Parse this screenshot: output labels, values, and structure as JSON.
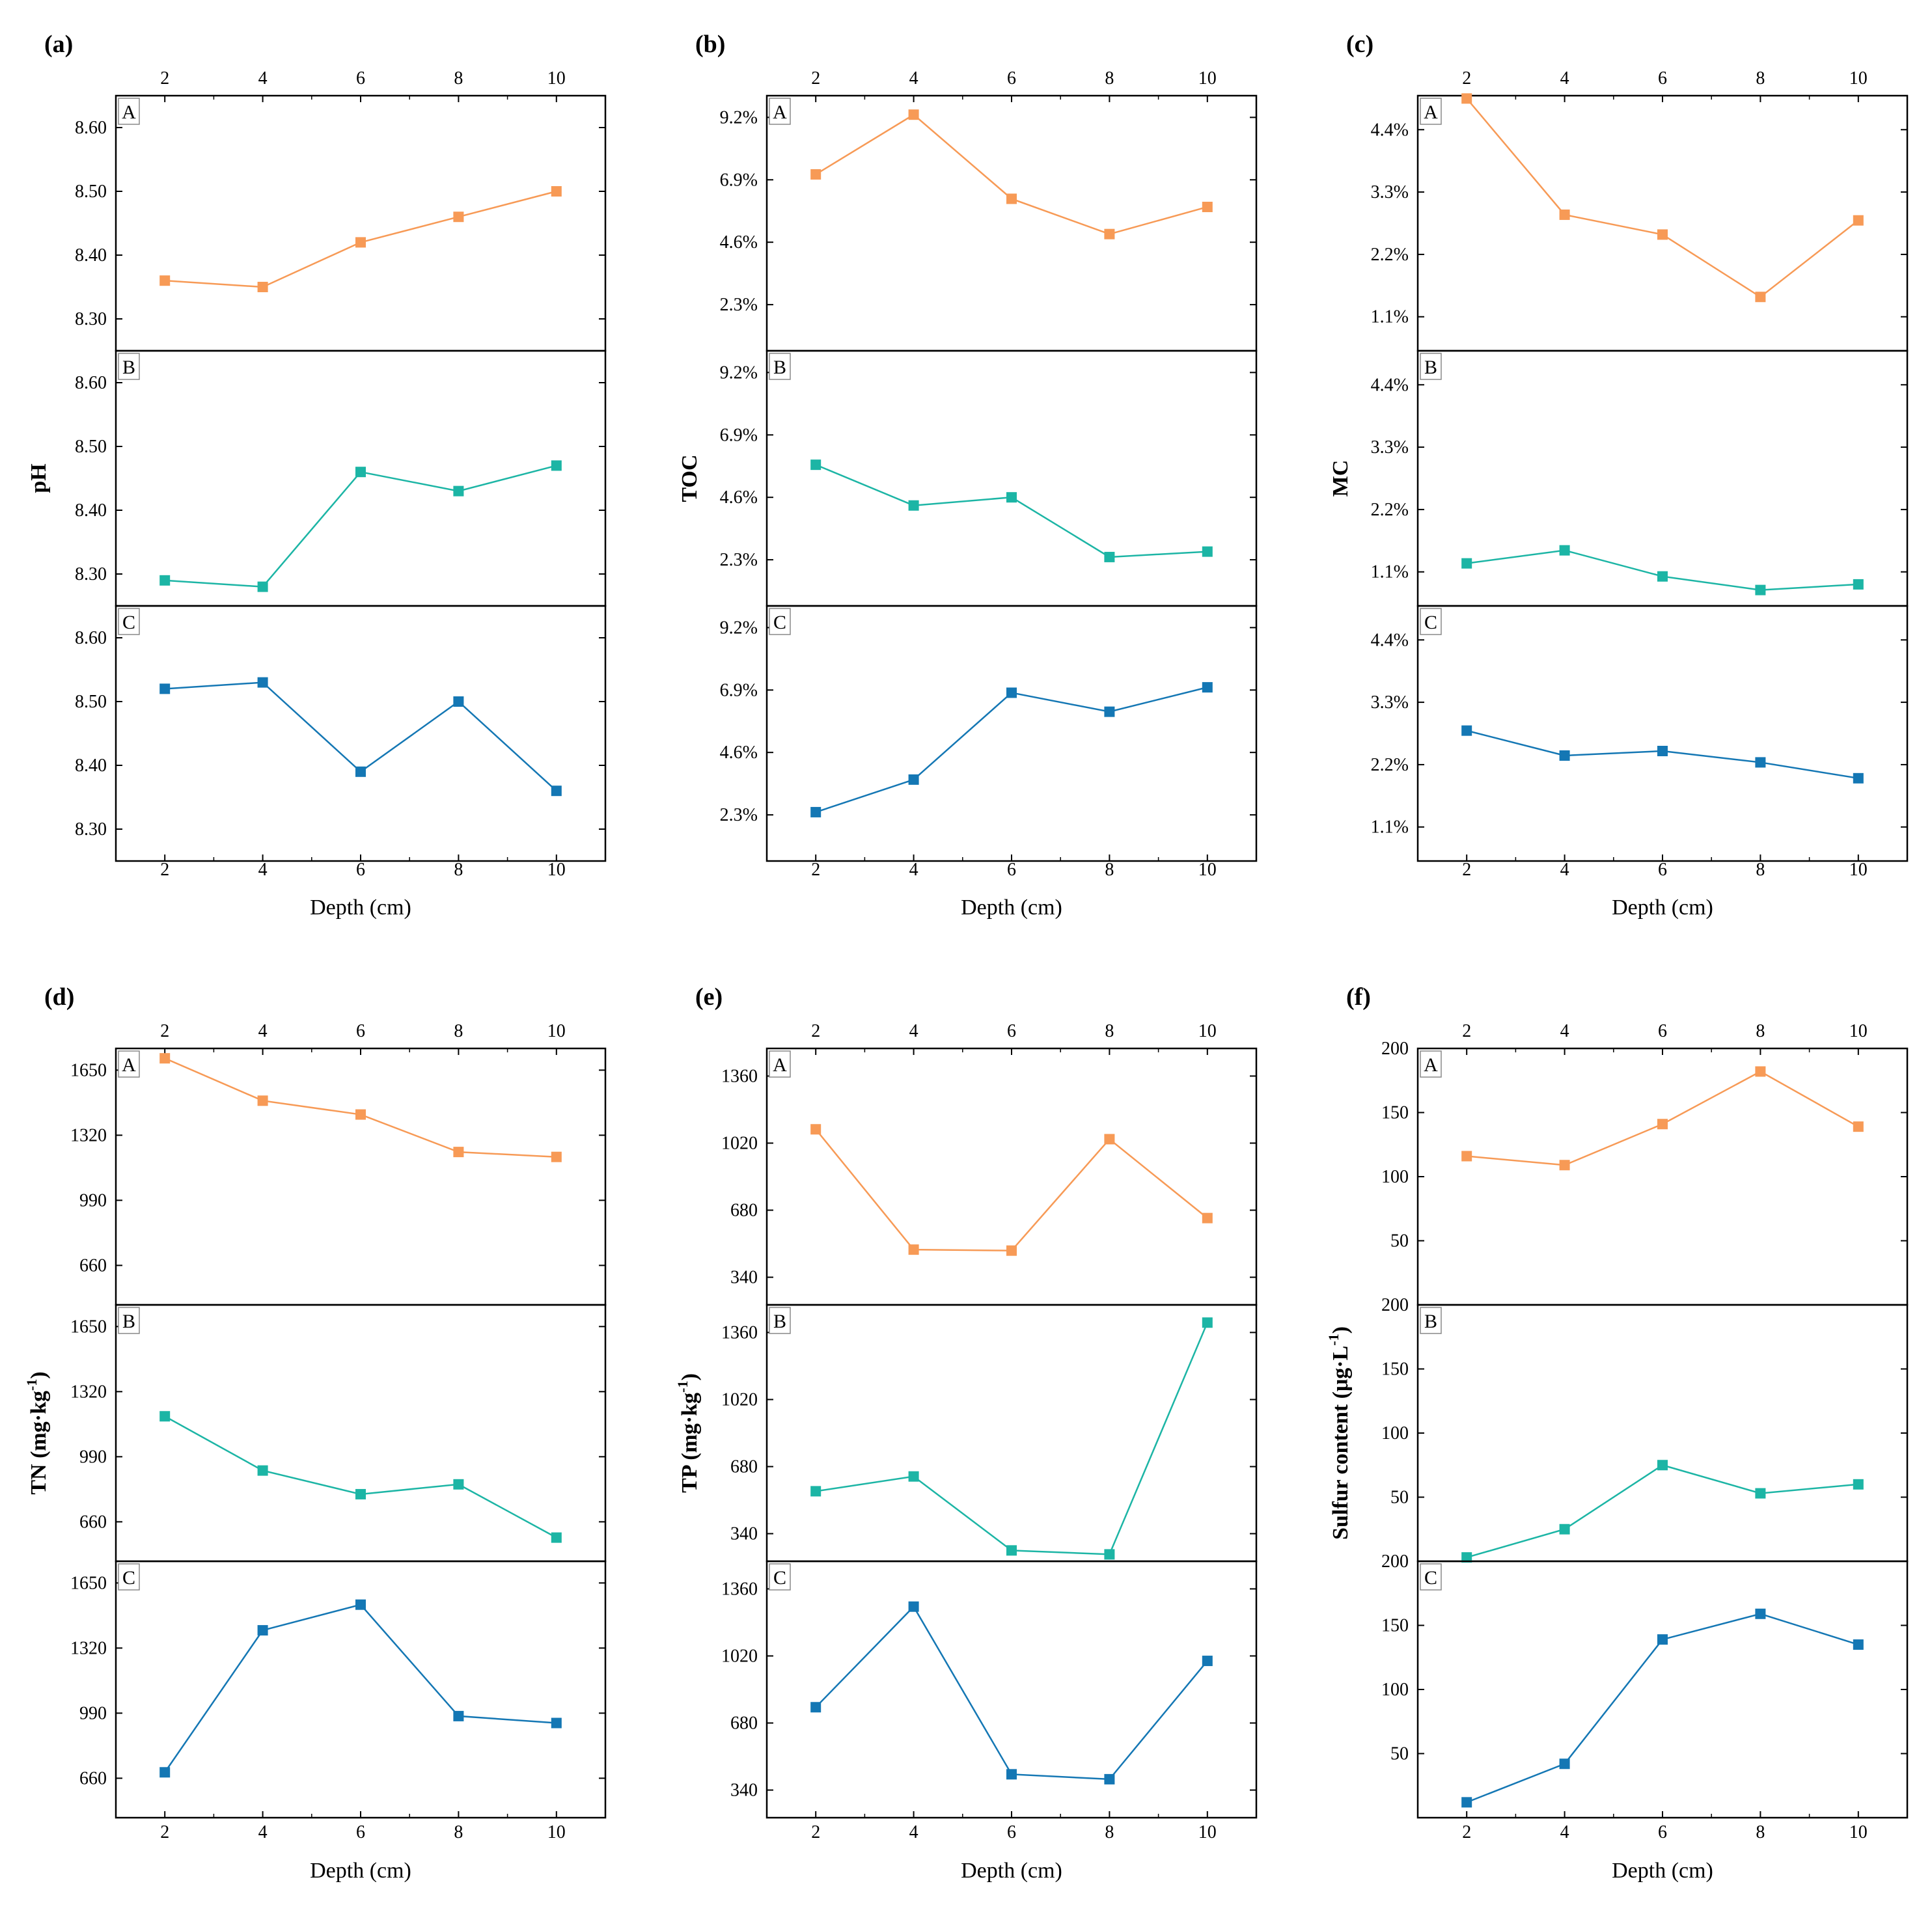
{
  "colors": {
    "A": "#F79A56",
    "B": "#1CB5A5",
    "C": "#1477B4"
  },
  "chart_data": [
    {
      "type": "line",
      "panel_label": "(a)",
      "ylabel": "pH",
      "xlabel": "Depth (cm)",
      "x": [
        2,
        4,
        6,
        8,
        10
      ],
      "xticks": [
        "2",
        "4",
        "6",
        "8",
        "10"
      ],
      "ylim": [
        8.25,
        8.65
      ],
      "yticks": [
        "8.30",
        "8.40",
        "8.50",
        "8.60"
      ],
      "ytick_values": [
        8.3,
        8.4,
        8.5,
        8.6
      ],
      "series": [
        {
          "name": "A",
          "values": [
            8.36,
            8.35,
            8.42,
            8.46,
            8.5
          ]
        },
        {
          "name": "B",
          "values": [
            8.29,
            8.28,
            8.46,
            8.43,
            8.47
          ]
        },
        {
          "name": "C",
          "values": [
            8.52,
            8.53,
            8.39,
            8.5,
            8.36
          ]
        }
      ]
    },
    {
      "type": "line",
      "panel_label": "(b)",
      "ylabel": "TOC",
      "xlabel": "Depth (cm)",
      "x": [
        2,
        4,
        6,
        8,
        10
      ],
      "xticks": [
        "2",
        "4",
        "6",
        "8",
        "10"
      ],
      "ylim": [
        0.6,
        10.0
      ],
      "yticks": [
        "2.3%",
        "4.6%",
        "6.9%",
        "9.2%"
      ],
      "ytick_values": [
        2.3,
        4.6,
        6.9,
        9.2
      ],
      "series": [
        {
          "name": "A",
          "values": [
            7.1,
            9.3,
            6.2,
            4.9,
            5.9
          ]
        },
        {
          "name": "B",
          "values": [
            5.8,
            4.3,
            4.6,
            2.4,
            2.6
          ]
        },
        {
          "name": "C",
          "values": [
            2.4,
            3.6,
            6.8,
            6.1,
            7.0
          ]
        }
      ]
    },
    {
      "type": "line",
      "panel_label": "(c)",
      "ylabel": "MC",
      "xlabel": "Depth (cm)",
      "x": [
        2,
        4,
        6,
        8,
        10
      ],
      "xticks": [
        "2",
        "4",
        "6",
        "8",
        "10"
      ],
      "ylim": [
        0.5,
        5.0
      ],
      "yticks": [
        "1.1%",
        "2.2%",
        "3.3%",
        "4.4%"
      ],
      "ytick_values": [
        1.1,
        2.2,
        3.3,
        4.4
      ],
      "series": [
        {
          "name": "A",
          "values": [
            4.95,
            2.9,
            2.55,
            1.45,
            2.8
          ]
        },
        {
          "name": "B",
          "values": [
            1.25,
            1.48,
            1.02,
            0.78,
            0.88
          ]
        },
        {
          "name": "C",
          "values": [
            2.8,
            2.36,
            2.44,
            2.24,
            1.96
          ]
        }
      ]
    },
    {
      "type": "line",
      "panel_label": "(d)",
      "ylabel": "TN (mg·kg",
      "ylabel_sup": "-1",
      "ylabel_end": ")",
      "xlabel": "Depth (cm)",
      "x": [
        2,
        4,
        6,
        8,
        10
      ],
      "xticks": [
        "2",
        "4",
        "6",
        "8",
        "10"
      ],
      "ylim": [
        460,
        1760
      ],
      "yticks": [
        "660",
        "990",
        "1320",
        "1650"
      ],
      "ytick_values": [
        660,
        990,
        1320,
        1650
      ],
      "series": [
        {
          "name": "A",
          "values": [
            1710,
            1495,
            1425,
            1235,
            1210
          ]
        },
        {
          "name": "B",
          "values": [
            1195,
            920,
            800,
            850,
            580
          ]
        },
        {
          "name": "C",
          "values": [
            690,
            1410,
            1540,
            975,
            940
          ]
        }
      ]
    },
    {
      "type": "line",
      "panel_label": "(e)",
      "ylabel": "TP (mg·kg",
      "ylabel_sup": "-1",
      "ylabel_end": ")",
      "xlabel": "Depth (cm)",
      "x": [
        2,
        4,
        6,
        8,
        10
      ],
      "xticks": [
        "2",
        "4",
        "6",
        "8",
        "10"
      ],
      "ylim": [
        200,
        1500
      ],
      "yticks": [
        "340",
        "680",
        "1020",
        "1360"
      ],
      "ytick_values": [
        340,
        680,
        1020,
        1360
      ],
      "series": [
        {
          "name": "A",
          "values": [
            1090,
            480,
            475,
            1040,
            640
          ]
        },
        {
          "name": "B",
          "values": [
            555,
            630,
            255,
            235,
            1410
          ]
        },
        {
          "name": "C",
          "values": [
            760,
            1270,
            420,
            395,
            995
          ]
        }
      ]
    },
    {
      "type": "line",
      "panel_label": "(f)",
      "ylabel": "Sulfur content (μg·L",
      "ylabel_sup": "-1",
      "ylabel_end": ")",
      "xlabel": "Depth (cm)",
      "x": [
        2,
        4,
        6,
        8,
        10
      ],
      "xticks": [
        "2",
        "4",
        "6",
        "8",
        "10"
      ],
      "ylim": [
        0,
        200
      ],
      "yticks": [
        "50",
        "100",
        "150",
        "200"
      ],
      "ytick_values": [
        50,
        100,
        150,
        200
      ],
      "series": [
        {
          "name": "A",
          "values": [
            116,
            109,
            141,
            182,
            139
          ]
        },
        {
          "name": "B",
          "values": [
            3,
            25,
            75,
            53,
            60
          ]
        },
        {
          "name": "C",
          "values": [
            12,
            42,
            139,
            159,
            135
          ]
        }
      ]
    }
  ]
}
